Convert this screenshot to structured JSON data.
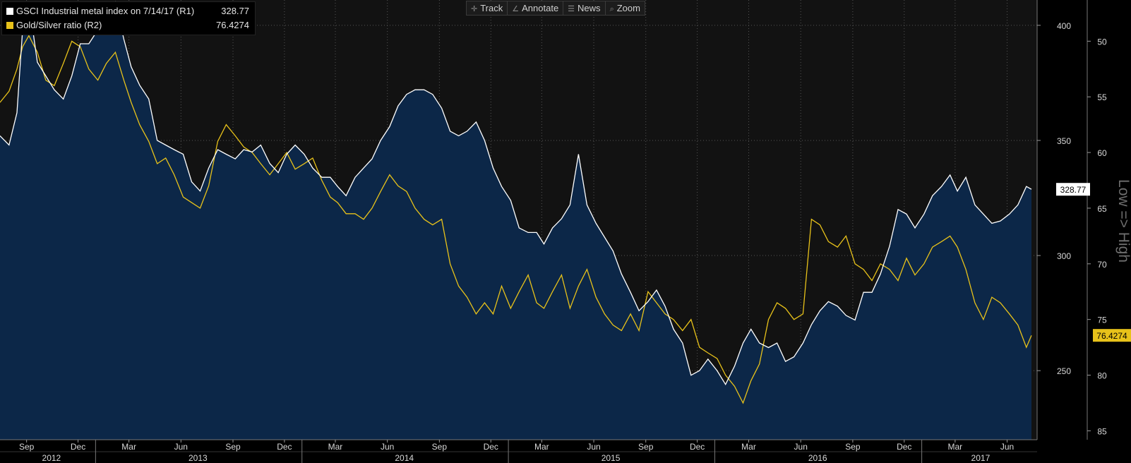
{
  "toolbar": {
    "track": "Track",
    "annotate": "Annotate",
    "news": "News",
    "zoom": "Zoom"
  },
  "legend": [
    {
      "label": "GSCI Industrial metal index on 7/14/17 (R1)",
      "value": "328.77",
      "color": "#ffffff"
    },
    {
      "label": "Gold/Silver ratio (R2)",
      "value": "76.4274",
      "color": "#e8c21a"
    }
  ],
  "colors": {
    "background": "#000000",
    "plot_upper": "#121212",
    "area_fill": "#0c2748",
    "gsci_line": "#ffffff",
    "ratio_line": "#e8c21a",
    "grid": "#555555"
  },
  "chart_data": {
    "type": "line",
    "x_range": [
      "2012-07-16",
      "2017-07-14"
    ],
    "x_ticks": [
      {
        "date": "2012-09-01",
        "label": "Sep"
      },
      {
        "date": "2012-12-01",
        "label": "Dec"
      },
      {
        "date": "2013-03-01",
        "label": "Mar"
      },
      {
        "date": "2013-06-01",
        "label": "Jun"
      },
      {
        "date": "2013-09-01",
        "label": "Sep"
      },
      {
        "date": "2013-12-01",
        "label": "Dec"
      },
      {
        "date": "2014-03-01",
        "label": "Mar"
      },
      {
        "date": "2014-06-01",
        "label": "Jun"
      },
      {
        "date": "2014-09-01",
        "label": "Sep"
      },
      {
        "date": "2014-12-01",
        "label": "Dec"
      },
      {
        "date": "2015-03-01",
        "label": "Mar"
      },
      {
        "date": "2015-06-01",
        "label": "Jun"
      },
      {
        "date": "2015-09-01",
        "label": "Sep"
      },
      {
        "date": "2015-12-01",
        "label": "Dec"
      },
      {
        "date": "2016-03-01",
        "label": "Mar"
      },
      {
        "date": "2016-06-01",
        "label": "Jun"
      },
      {
        "date": "2016-09-01",
        "label": "Sep"
      },
      {
        "date": "2016-12-01",
        "label": "Dec"
      },
      {
        "date": "2017-03-01",
        "label": "Mar"
      },
      {
        "date": "2017-06-01",
        "label": "Jun"
      }
    ],
    "year_labels": [
      {
        "label": "2012",
        "center": "2012-10-15"
      },
      {
        "label": "2013",
        "center": "2013-07-01"
      },
      {
        "label": "2014",
        "center": "2014-07-01"
      },
      {
        "label": "2015",
        "center": "2015-07-01"
      },
      {
        "label": "2016",
        "center": "2016-07-01"
      },
      {
        "label": "2017",
        "center": "2017-04-15"
      }
    ],
    "year_boundaries": [
      "2013-01-01",
      "2014-01-01",
      "2015-01-01",
      "2016-01-01",
      "2017-01-01"
    ],
    "axis_r1": {
      "ticks": [
        400,
        350,
        300,
        250
      ],
      "range": [
        220,
        411
      ]
    },
    "axis_r2": {
      "ticks": [
        50,
        55,
        60,
        65,
        70,
        75,
        80,
        85
      ],
      "range": [
        46.3,
        85.8
      ],
      "inverted": true,
      "label": "Low => High"
    },
    "last_values": {
      "r1": "328.77",
      "r2": "76.4274"
    },
    "grid": true,
    "legend_position": "top-left",
    "series": [
      {
        "name": "GSCI Industrial metal index on 7/14/17 (R1)",
        "axis": "r1",
        "points": [
          [
            "2012-07-16",
            352
          ],
          [
            "2012-08-01",
            348
          ],
          [
            "2012-08-15",
            362
          ],
          [
            "2012-08-25",
            398
          ],
          [
            "2012-09-05",
            410
          ],
          [
            "2012-09-20",
            384
          ],
          [
            "2012-10-05",
            378
          ],
          [
            "2012-10-20",
            372
          ],
          [
            "2012-11-05",
            368
          ],
          [
            "2012-11-20",
            378
          ],
          [
            "2012-12-05",
            392
          ],
          [
            "2012-12-20",
            392
          ],
          [
            "2013-01-05",
            398
          ],
          [
            "2013-01-20",
            402
          ],
          [
            "2013-02-05",
            410
          ],
          [
            "2013-02-20",
            394
          ],
          [
            "2013-03-05",
            382
          ],
          [
            "2013-03-20",
            374
          ],
          [
            "2013-04-05",
            368
          ],
          [
            "2013-04-20",
            350
          ],
          [
            "2013-05-05",
            348
          ],
          [
            "2013-05-20",
            346
          ],
          [
            "2013-06-05",
            344
          ],
          [
            "2013-06-20",
            332
          ],
          [
            "2013-07-05",
            328
          ],
          [
            "2013-07-20",
            338
          ],
          [
            "2013-08-05",
            346
          ],
          [
            "2013-08-20",
            344
          ],
          [
            "2013-09-05",
            342
          ],
          [
            "2013-09-20",
            346
          ],
          [
            "2013-10-05",
            345
          ],
          [
            "2013-10-20",
            348
          ],
          [
            "2013-11-05",
            340
          ],
          [
            "2013-11-20",
            336
          ],
          [
            "2013-12-05",
            344
          ],
          [
            "2013-12-20",
            348
          ],
          [
            "2014-01-05",
            344
          ],
          [
            "2014-01-20",
            338
          ],
          [
            "2014-02-05",
            334
          ],
          [
            "2014-02-20",
            334
          ],
          [
            "2014-03-05",
            330
          ],
          [
            "2014-03-20",
            326
          ],
          [
            "2014-04-05",
            334
          ],
          [
            "2014-04-20",
            338
          ],
          [
            "2014-05-05",
            342
          ],
          [
            "2014-05-20",
            350
          ],
          [
            "2014-06-05",
            356
          ],
          [
            "2014-06-20",
            365
          ],
          [
            "2014-07-05",
            370
          ],
          [
            "2014-07-20",
            372
          ],
          [
            "2014-08-05",
            372
          ],
          [
            "2014-08-20",
            370
          ],
          [
            "2014-09-05",
            364
          ],
          [
            "2014-09-20",
            354
          ],
          [
            "2014-10-05",
            352
          ],
          [
            "2014-10-20",
            354
          ],
          [
            "2014-11-05",
            358
          ],
          [
            "2014-11-20",
            350
          ],
          [
            "2014-12-05",
            338
          ],
          [
            "2014-12-20",
            330
          ],
          [
            "2015-01-05",
            324
          ],
          [
            "2015-01-20",
            312
          ],
          [
            "2015-02-05",
            310
          ],
          [
            "2015-02-20",
            310
          ],
          [
            "2015-03-05",
            305
          ],
          [
            "2015-03-20",
            312
          ],
          [
            "2015-04-05",
            316
          ],
          [
            "2015-04-20",
            322
          ],
          [
            "2015-05-05",
            344
          ],
          [
            "2015-05-20",
            322
          ],
          [
            "2015-06-05",
            314
          ],
          [
            "2015-06-20",
            308
          ],
          [
            "2015-07-05",
            302
          ],
          [
            "2015-07-20",
            292
          ],
          [
            "2015-08-05",
            284
          ],
          [
            "2015-08-20",
            276
          ],
          [
            "2015-09-05",
            280
          ],
          [
            "2015-09-20",
            285
          ],
          [
            "2015-10-05",
            278
          ],
          [
            "2015-10-20",
            268
          ],
          [
            "2015-11-05",
            262
          ],
          [
            "2015-11-20",
            248
          ],
          [
            "2015-12-05",
            250
          ],
          [
            "2015-12-20",
            255
          ],
          [
            "2016-01-05",
            250
          ],
          [
            "2016-01-20",
            244
          ],
          [
            "2016-02-05",
            252
          ],
          [
            "2016-02-20",
            262
          ],
          [
            "2016-03-05",
            268
          ],
          [
            "2016-03-20",
            262
          ],
          [
            "2016-04-05",
            260
          ],
          [
            "2016-04-20",
            262
          ],
          [
            "2016-05-05",
            254
          ],
          [
            "2016-05-20",
            256
          ],
          [
            "2016-06-05",
            262
          ],
          [
            "2016-06-20",
            270
          ],
          [
            "2016-07-05",
            276
          ],
          [
            "2016-07-20",
            280
          ],
          [
            "2016-08-05",
            278
          ],
          [
            "2016-08-20",
            274
          ],
          [
            "2016-09-05",
            272
          ],
          [
            "2016-09-20",
            284
          ],
          [
            "2016-10-05",
            284
          ],
          [
            "2016-10-20",
            292
          ],
          [
            "2016-11-05",
            304
          ],
          [
            "2016-11-20",
            320
          ],
          [
            "2016-12-05",
            318
          ],
          [
            "2016-12-20",
            312
          ],
          [
            "2017-01-05",
            318
          ],
          [
            "2017-01-20",
            326
          ],
          [
            "2017-02-05",
            330
          ],
          [
            "2017-02-20",
            335
          ],
          [
            "2017-03-05",
            328
          ],
          [
            "2017-03-20",
            334
          ],
          [
            "2017-04-05",
            322
          ],
          [
            "2017-04-20",
            318
          ],
          [
            "2017-05-05",
            314
          ],
          [
            "2017-05-20",
            315
          ],
          [
            "2017-06-05",
            318
          ],
          [
            "2017-06-20",
            322
          ],
          [
            "2017-07-05",
            330
          ],
          [
            "2017-07-14",
            328.77
          ]
        ]
      },
      {
        "name": "Gold/Silver ratio (R2)",
        "axis": "r2",
        "points": [
          [
            "2012-07-16",
            55.5
          ],
          [
            "2012-08-01",
            54.5
          ],
          [
            "2012-08-15",
            52.5
          ],
          [
            "2012-08-25",
            50.5
          ],
          [
            "2012-09-05",
            49.5
          ],
          [
            "2012-09-20",
            51.0
          ],
          [
            "2012-10-05",
            53.5
          ],
          [
            "2012-10-20",
            54.0
          ],
          [
            "2012-11-05",
            52.0
          ],
          [
            "2012-11-20",
            50.0
          ],
          [
            "2012-12-05",
            50.5
          ],
          [
            "2012-12-20",
            52.5
          ],
          [
            "2013-01-05",
            53.5
          ],
          [
            "2013-01-20",
            52.0
          ],
          [
            "2013-02-05",
            51.0
          ],
          [
            "2013-02-20",
            53.5
          ],
          [
            "2013-03-05",
            55.5
          ],
          [
            "2013-03-20",
            57.5
          ],
          [
            "2013-04-05",
            59.0
          ],
          [
            "2013-04-20",
            61.0
          ],
          [
            "2013-05-05",
            60.5
          ],
          [
            "2013-05-20",
            62.0
          ],
          [
            "2013-06-05",
            64.0
          ],
          [
            "2013-06-20",
            64.5
          ],
          [
            "2013-07-05",
            65.0
          ],
          [
            "2013-07-20",
            63.0
          ],
          [
            "2013-08-05",
            59.0
          ],
          [
            "2013-08-20",
            57.5
          ],
          [
            "2013-09-05",
            58.5
          ],
          [
            "2013-09-20",
            59.5
          ],
          [
            "2013-10-05",
            60.0
          ],
          [
            "2013-10-20",
            61.0
          ],
          [
            "2013-11-05",
            62.0
          ],
          [
            "2013-11-20",
            61.0
          ],
          [
            "2013-12-05",
            60.0
          ],
          [
            "2013-12-20",
            61.5
          ],
          [
            "2014-01-05",
            61.0
          ],
          [
            "2014-01-20",
            60.5
          ],
          [
            "2014-02-05",
            62.5
          ],
          [
            "2014-02-20",
            64.0
          ],
          [
            "2014-03-05",
            64.5
          ],
          [
            "2014-03-20",
            65.5
          ],
          [
            "2014-04-05",
            65.5
          ],
          [
            "2014-04-20",
            66.0
          ],
          [
            "2014-05-05",
            65.0
          ],
          [
            "2014-05-20",
            63.5
          ],
          [
            "2014-06-05",
            62.0
          ],
          [
            "2014-06-20",
            63.0
          ],
          [
            "2014-07-05",
            63.5
          ],
          [
            "2014-07-20",
            65.0
          ],
          [
            "2014-08-05",
            66.0
          ],
          [
            "2014-08-20",
            66.5
          ],
          [
            "2014-09-05",
            66.0
          ],
          [
            "2014-09-20",
            70.0
          ],
          [
            "2014-10-05",
            72.0
          ],
          [
            "2014-10-20",
            73.0
          ],
          [
            "2014-11-05",
            74.5
          ],
          [
            "2014-11-20",
            73.5
          ],
          [
            "2014-12-05",
            74.5
          ],
          [
            "2014-12-20",
            72.0
          ],
          [
            "2015-01-05",
            74.0
          ],
          [
            "2015-01-20",
            72.5
          ],
          [
            "2015-02-05",
            71.0
          ],
          [
            "2015-02-20",
            73.5
          ],
          [
            "2015-03-05",
            74.0
          ],
          [
            "2015-03-20",
            72.5
          ],
          [
            "2015-04-05",
            71.0
          ],
          [
            "2015-04-20",
            74.0
          ],
          [
            "2015-05-05",
            72.0
          ],
          [
            "2015-05-20",
            70.5
          ],
          [
            "2015-06-05",
            73.0
          ],
          [
            "2015-06-20",
            74.5
          ],
          [
            "2015-07-05",
            75.5
          ],
          [
            "2015-07-20",
            76.0
          ],
          [
            "2015-08-05",
            74.5
          ],
          [
            "2015-08-20",
            76.0
          ],
          [
            "2015-09-05",
            72.5
          ],
          [
            "2015-09-20",
            73.5
          ],
          [
            "2015-10-05",
            74.5
          ],
          [
            "2015-10-20",
            75.0
          ],
          [
            "2015-11-05",
            76.0
          ],
          [
            "2015-11-20",
            75.0
          ],
          [
            "2015-12-05",
            77.5
          ],
          [
            "2015-12-20",
            78.0
          ],
          [
            "2016-01-05",
            78.5
          ],
          [
            "2016-01-20",
            80.0
          ],
          [
            "2016-02-05",
            81.0
          ],
          [
            "2016-02-20",
            82.5
          ],
          [
            "2016-03-05",
            80.5
          ],
          [
            "2016-03-20",
            79.0
          ],
          [
            "2016-04-05",
            75.0
          ],
          [
            "2016-04-20",
            73.5
          ],
          [
            "2016-05-05",
            74.0
          ],
          [
            "2016-05-20",
            75.0
          ],
          [
            "2016-06-05",
            74.5
          ],
          [
            "2016-06-20",
            66.0
          ],
          [
            "2016-07-05",
            66.5
          ],
          [
            "2016-07-20",
            68.0
          ],
          [
            "2016-08-05",
            68.5
          ],
          [
            "2016-08-20",
            67.5
          ],
          [
            "2016-09-05",
            70.0
          ],
          [
            "2016-09-20",
            70.5
          ],
          [
            "2016-10-05",
            71.5
          ],
          [
            "2016-10-20",
            70.0
          ],
          [
            "2016-11-05",
            70.5
          ],
          [
            "2016-11-20",
            71.5
          ],
          [
            "2016-12-05",
            69.5
          ],
          [
            "2016-12-20",
            71.0
          ],
          [
            "2017-01-05",
            70.0
          ],
          [
            "2017-01-20",
            68.5
          ],
          [
            "2017-02-05",
            68.0
          ],
          [
            "2017-02-20",
            67.5
          ],
          [
            "2017-03-05",
            68.5
          ],
          [
            "2017-03-20",
            70.5
          ],
          [
            "2017-04-05",
            73.5
          ],
          [
            "2017-04-20",
            75.0
          ],
          [
            "2017-05-05",
            73.0
          ],
          [
            "2017-05-20",
            73.5
          ],
          [
            "2017-06-05",
            74.5
          ],
          [
            "2017-06-20",
            75.5
          ],
          [
            "2017-07-05",
            77.5
          ],
          [
            "2017-07-14",
            76.4274
          ]
        ]
      }
    ]
  }
}
